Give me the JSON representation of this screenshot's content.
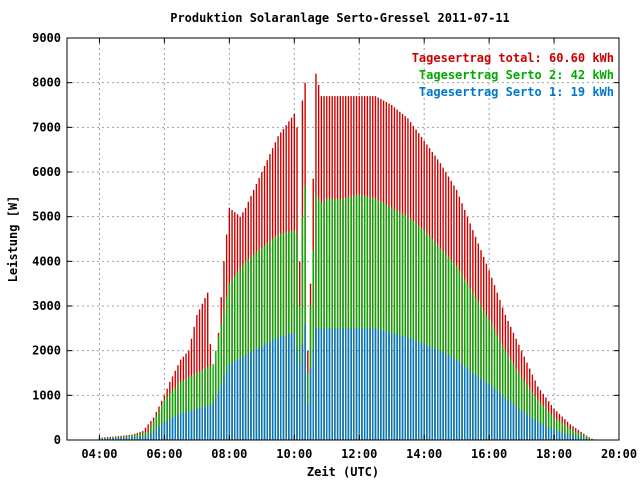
{
  "chart_data": {
    "type": "bar",
    "title": "Produktion Solaranlage Serto-Gressel 2011-07-11",
    "xlabel": "Zeit (UTC)",
    "ylabel": "Leistung [W]",
    "xlim": [
      "03:00",
      "20:00"
    ],
    "ylim": [
      0,
      9000
    ],
    "x_ticks": [
      "04:00",
      "06:00",
      "08:00",
      "10:00",
      "12:00",
      "14:00",
      "16:00",
      "18:00",
      "20:00"
    ],
    "y_ticks": [
      "0",
      "1000",
      "2000",
      "3000",
      "4000",
      "5000",
      "6000",
      "7000",
      "8000",
      "9000"
    ],
    "grid": true,
    "legend_position": "top-right",
    "series": [
      {
        "name": "Tagesertrag total: 60.60 kWh",
        "color": "#cc0000",
        "keypoints": [
          [
            "04:00",
            50
          ],
          [
            "04:30",
            80
          ],
          [
            "05:00",
            120
          ],
          [
            "05:20",
            200
          ],
          [
            "05:40",
            500
          ],
          [
            "06:00",
            1000
          ],
          [
            "06:10",
            1300
          ],
          [
            "06:30",
            1800
          ],
          [
            "06:45",
            2000
          ],
          [
            "07:00",
            2800
          ],
          [
            "07:20",
            3300
          ],
          [
            "07:30",
            1000
          ],
          [
            "07:40",
            2400
          ],
          [
            "07:50",
            4000
          ],
          [
            "08:00",
            5200
          ],
          [
            "08:20",
            5000
          ],
          [
            "08:30",
            5200
          ],
          [
            "09:00",
            6000
          ],
          [
            "09:30",
            6800
          ],
          [
            "10:00",
            7300
          ],
          [
            "10:05",
            7000
          ],
          [
            "10:10",
            4000
          ],
          [
            "10:15",
            7600
          ],
          [
            "10:20",
            8000
          ],
          [
            "10:25",
            2000
          ],
          [
            "10:30",
            3500
          ],
          [
            "10:40",
            8200
          ],
          [
            "10:50",
            7700
          ],
          [
            "11:00",
            7700
          ],
          [
            "11:30",
            7700
          ],
          [
            "12:00",
            7700
          ],
          [
            "12:30",
            7700
          ],
          [
            "13:00",
            7500
          ],
          [
            "13:30",
            7200
          ],
          [
            "14:00",
            6700
          ],
          [
            "14:30",
            6200
          ],
          [
            "15:00",
            5600
          ],
          [
            "15:30",
            4700
          ],
          [
            "16:00",
            3800
          ],
          [
            "16:30",
            2800
          ],
          [
            "17:00",
            2000
          ],
          [
            "17:30",
            1200
          ],
          [
            "18:00",
            700
          ],
          [
            "18:30",
            350
          ],
          [
            "19:00",
            100
          ],
          [
            "19:10",
            30
          ],
          [
            "19:20",
            0
          ]
        ]
      },
      {
        "name": "Tagesertrag Serto 2: 42 kWh",
        "color": "#00aa00",
        "keypoints": [
          [
            "04:00",
            40
          ],
          [
            "04:30",
            60
          ],
          [
            "05:00",
            100
          ],
          [
            "05:30",
            180
          ],
          [
            "06:00",
            900
          ],
          [
            "06:30",
            1300
          ],
          [
            "07:00",
            1500
          ],
          [
            "07:30",
            1700
          ],
          [
            "08:00",
            3500
          ],
          [
            "08:30",
            4000
          ],
          [
            "09:00",
            4300
          ],
          [
            "09:30",
            4600
          ],
          [
            "10:00",
            4700
          ],
          [
            "10:05",
            4600
          ],
          [
            "10:10",
            3000
          ],
          [
            "10:15",
            5000
          ],
          [
            "10:20",
            5700
          ],
          [
            "10:25",
            1500
          ],
          [
            "10:30",
            3000
          ],
          [
            "10:40",
            5500
          ],
          [
            "10:50",
            5300
          ],
          [
            "11:00",
            5400
          ],
          [
            "11:30",
            5400
          ],
          [
            "12:00",
            5500
          ],
          [
            "12:30",
            5400
          ],
          [
            "13:00",
            5200
          ],
          [
            "13:30",
            5000
          ],
          [
            "14:00",
            4700
          ],
          [
            "14:30",
            4300
          ],
          [
            "15:00",
            3900
          ],
          [
            "15:30",
            3300
          ],
          [
            "16:00",
            2700
          ],
          [
            "16:30",
            2000
          ],
          [
            "17:00",
            1400
          ],
          [
            "17:30",
            900
          ],
          [
            "18:00",
            500
          ],
          [
            "18:30",
            250
          ],
          [
            "19:00",
            80
          ],
          [
            "19:10",
            20
          ],
          [
            "19:20",
            0
          ]
        ]
      },
      {
        "name": "Tagesertrag Serto 1: 19 kWh",
        "color": "#0077cc",
        "keypoints": [
          [
            "04:00",
            20
          ],
          [
            "04:30",
            40
          ],
          [
            "05:00",
            60
          ],
          [
            "05:30",
            100
          ],
          [
            "06:00",
            400
          ],
          [
            "06:30",
            600
          ],
          [
            "07:00",
            700
          ],
          [
            "07:30",
            800
          ],
          [
            "08:00",
            1700
          ],
          [
            "08:30",
            1900
          ],
          [
            "09:00",
            2100
          ],
          [
            "09:30",
            2300
          ],
          [
            "10:00",
            2400
          ],
          [
            "10:10",
            1700
          ],
          [
            "10:20",
            2600
          ],
          [
            "10:25",
            800
          ],
          [
            "10:30",
            1600
          ],
          [
            "10:40",
            2500
          ],
          [
            "11:00",
            2500
          ],
          [
            "11:30",
            2500
          ],
          [
            "12:00",
            2500
          ],
          [
            "12:30",
            2500
          ],
          [
            "13:00",
            2400
          ],
          [
            "13:30",
            2300
          ],
          [
            "14:00",
            2150
          ],
          [
            "14:30",
            2000
          ],
          [
            "15:00",
            1800
          ],
          [
            "15:30",
            1500
          ],
          [
            "16:00",
            1250
          ],
          [
            "16:30",
            950
          ],
          [
            "17:00",
            650
          ],
          [
            "17:30",
            420
          ],
          [
            "18:00",
            230
          ],
          [
            "18:30",
            110
          ],
          [
            "19:00",
            40
          ],
          [
            "19:10",
            10
          ],
          [
            "19:20",
            0
          ]
        ]
      }
    ]
  }
}
